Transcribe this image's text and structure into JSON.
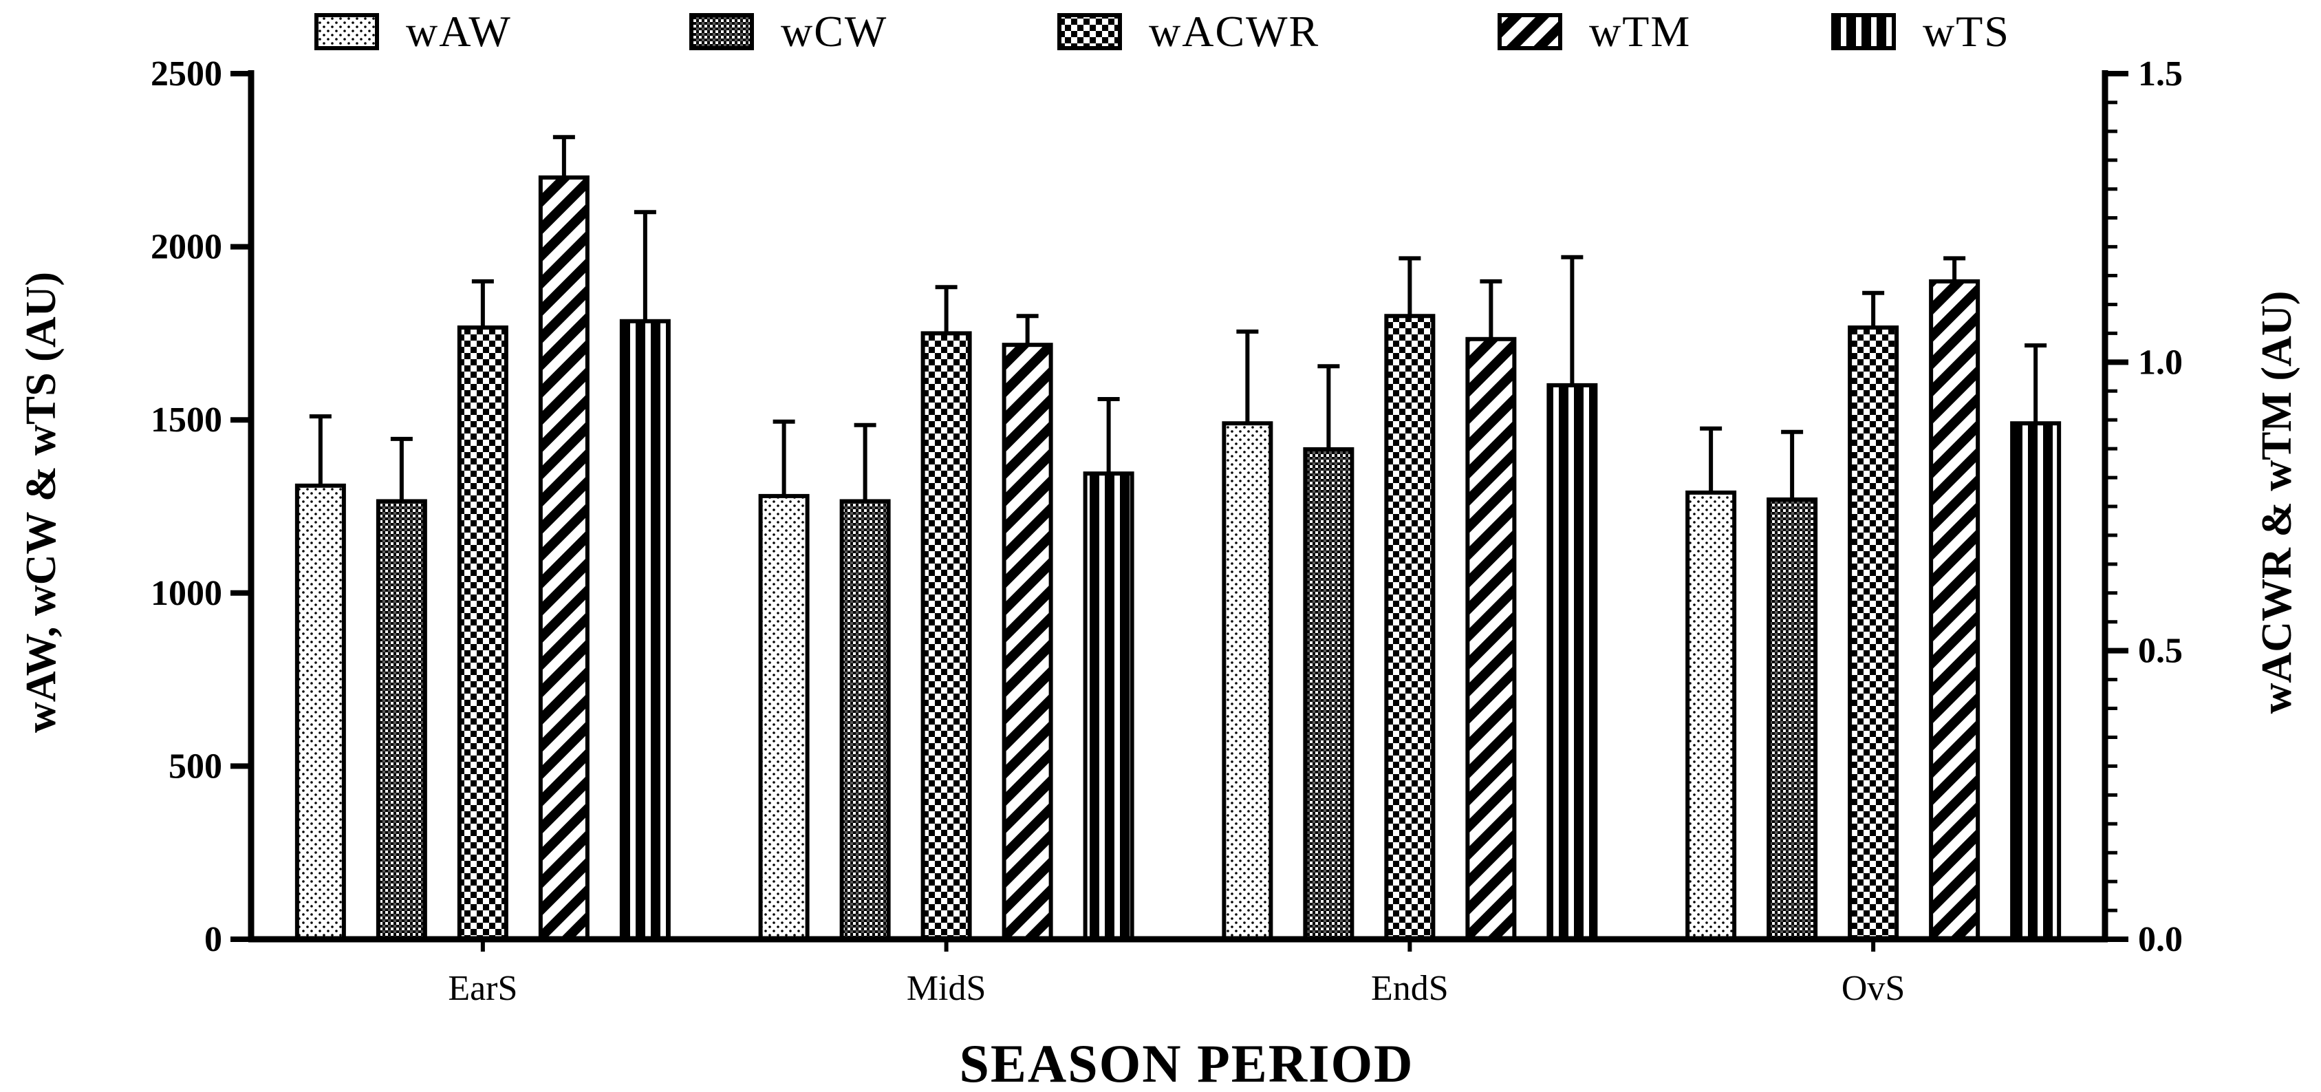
{
  "chart_data": {
    "type": "bar",
    "title": "",
    "xlabel": "SEASON PERIOD",
    "ylabel": "wAW, wCW & wTS (AU)",
    "ylabel_right": "wACWR & wTM (AU)",
    "ylim": [
      0,
      2500
    ],
    "ylim_right": [
      0.0,
      1.5
    ],
    "yticks": [
      "0",
      "500",
      "1000",
      "1500",
      "2000",
      "2500"
    ],
    "yticks_right": [
      "0.0",
      "0.5",
      "1.0",
      "1.5"
    ],
    "legend_position": "top",
    "error_bars": true,
    "categories": [
      "EarS",
      "MidS",
      "EndS",
      "OvS"
    ],
    "series": [
      {
        "name": "wAW",
        "axis": "left",
        "pattern": "dots",
        "values": [
          1310,
          1280,
          1490,
          1290
        ],
        "errors": [
          200,
          215,
          265,
          185
        ]
      },
      {
        "name": "wCW",
        "axis": "left",
        "pattern": "dense-check",
        "values": [
          1265,
          1265,
          1415,
          1270
        ],
        "errors": [
          180,
          220,
          240,
          195
        ]
      },
      {
        "name": "wACWR",
        "axis": "right",
        "pattern": "checker",
        "values": [
          1.06,
          1.05,
          1.08,
          1.06
        ],
        "errors": [
          0.08,
          0.08,
          0.1,
          0.06
        ]
      },
      {
        "name": "wTM",
        "axis": "right",
        "pattern": "diagonal",
        "values": [
          1.32,
          1.03,
          1.04,
          1.14
        ],
        "errors": [
          0.07,
          0.05,
          0.1,
          0.04
        ]
      },
      {
        "name": "wTS",
        "axis": "left",
        "pattern": "vertical",
        "values": [
          1785,
          1345,
          1600,
          1490
        ],
        "errors": [
          315,
          215,
          370,
          225
        ]
      }
    ]
  }
}
